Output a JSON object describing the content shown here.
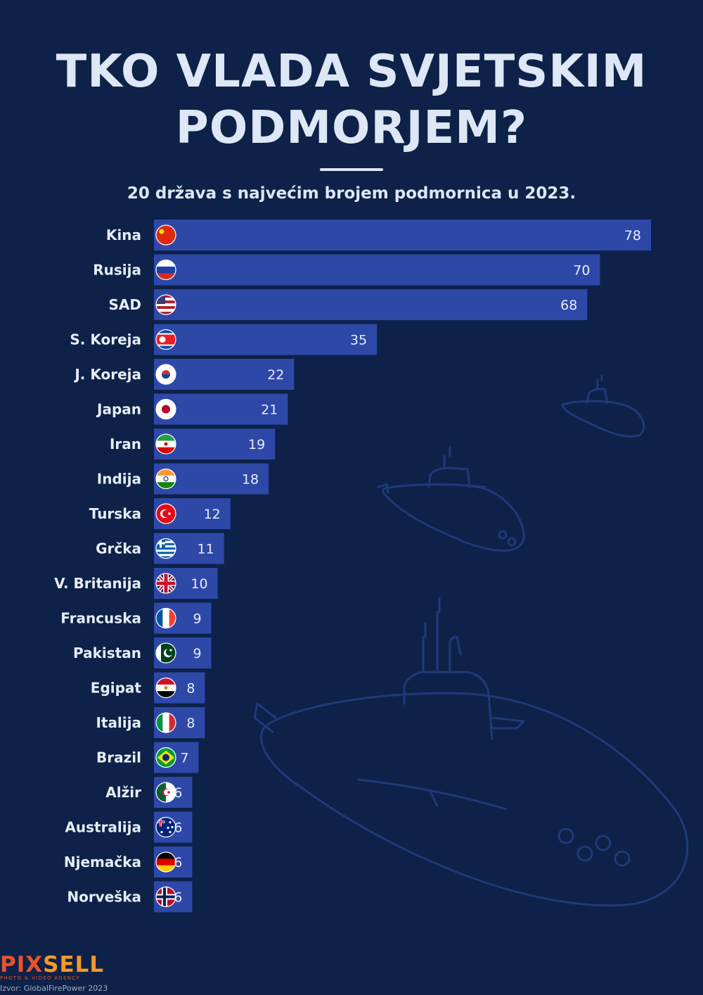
{
  "title_line1": "TKO VLADA SVJETSKIM",
  "title_line2": "PODMORJEM?",
  "subtitle": "20 država s najvećim brojem podmornica u 2023.",
  "logo": {
    "part_a": "PIX",
    "part_b": "SELL",
    "tagline": "PHOTO & VIDEO AGENCY"
  },
  "source": "Izvor: GlobalFirePower 2023",
  "colors": {
    "background": "#0e2148",
    "bar": "#2e48a8",
    "text": "#dde7f5"
  },
  "chart_data": {
    "type": "bar",
    "orientation": "horizontal",
    "title": "20 država s najvećim brojem podmornica u 2023.",
    "categories": [
      "Kina",
      "Rusija",
      "SAD",
      "S. Koreja",
      "J. Koreja",
      "Japan",
      "Iran",
      "Indija",
      "Turska",
      "Grčka",
      "V. Britanija",
      "Francuska",
      "Pakistan",
      "Egipat",
      "Italija",
      "Brazil",
      "Alžir",
      "Australija",
      "Njemačka",
      "Norveška"
    ],
    "values": [
      78,
      70,
      68,
      35,
      22,
      21,
      19,
      18,
      12,
      11,
      10,
      9,
      9,
      8,
      8,
      7,
      6,
      6,
      6,
      6
    ],
    "flag_icons": [
      "flag-china-icon",
      "flag-russia-icon",
      "flag-usa-icon",
      "flag-north-korea-icon",
      "flag-south-korea-icon",
      "flag-japan-icon",
      "flag-iran-icon",
      "flag-india-icon",
      "flag-turkey-icon",
      "flag-greece-icon",
      "flag-uk-icon",
      "flag-france-icon",
      "flag-pakistan-icon",
      "flag-egypt-icon",
      "flag-italy-icon",
      "flag-brazil-icon",
      "flag-algeria-icon",
      "flag-australia-icon",
      "flag-germany-icon",
      "flag-norway-icon"
    ],
    "xlim": [
      0,
      78
    ],
    "grid": false,
    "legend": "none"
  }
}
